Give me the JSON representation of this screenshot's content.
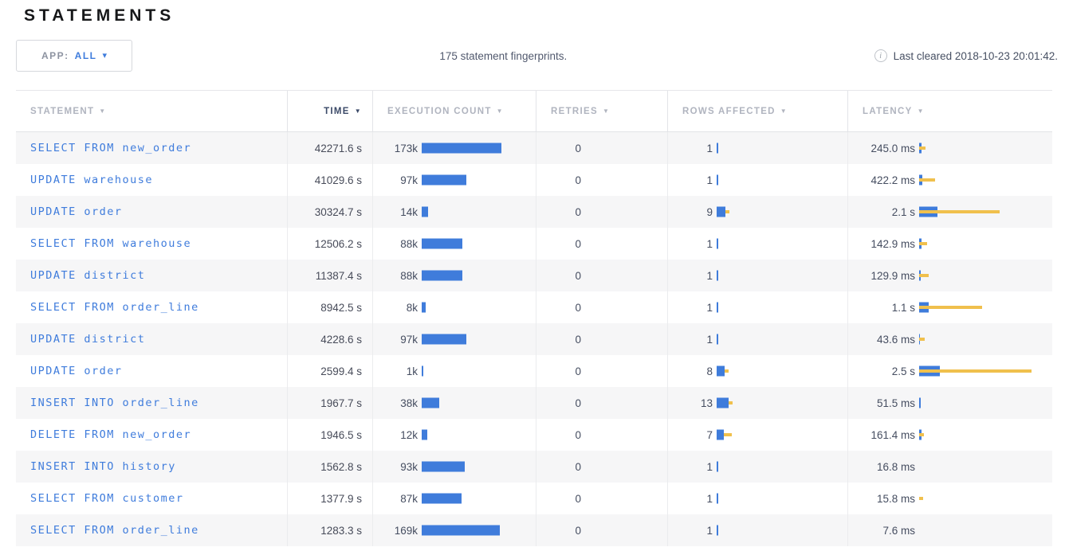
{
  "page": {
    "title": "STATEMENTS"
  },
  "toolbar": {
    "app_label": "APP:",
    "app_value": "ALL",
    "caret": "▾",
    "summary": "175 statement fingerprints.",
    "info_icon": "i",
    "last_cleared": "Last cleared 2018-10-23 20:01:42."
  },
  "colors": {
    "bar_blue": "#3F7CDB",
    "bar_yellow": "#F0C04D",
    "link_blue": "#3F7CDC",
    "sorted_header": "#3B4A68"
  },
  "table": {
    "sort_icon": "▼",
    "columns": [
      {
        "label": "STATEMENT",
        "sorted": false
      },
      {
        "label": "TIME",
        "sorted": true
      },
      {
        "label": "EXECUTION COUNT",
        "sorted": false
      },
      {
        "label": "RETRIES",
        "sorted": false
      },
      {
        "label": "ROWS AFFECTED",
        "sorted": false
      },
      {
        "label": "LATENCY",
        "sorted": false
      }
    ],
    "rows": [
      {
        "statement": "SELECT FROM new_order",
        "time": "42271.6 s",
        "exec_count": "173k",
        "exec_bar": 100,
        "retries": "0",
        "rows_affected": "1",
        "rows_bar": 2,
        "rows_dev": 0,
        "latency": "245.0 ms",
        "lat_bar": 3,
        "lat_dev": 8
      },
      {
        "statement": "UPDATE warehouse",
        "time": "41029.6 s",
        "exec_count": "97k",
        "exec_bar": 56,
        "retries": "0",
        "rows_affected": "1",
        "rows_bar": 2,
        "rows_dev": 0,
        "latency": "422.2 ms",
        "lat_bar": 4,
        "lat_dev": 20
      },
      {
        "statement": "UPDATE order",
        "time": "30324.7 s",
        "exec_count": "14k",
        "exec_bar": 8,
        "retries": "0",
        "rows_affected": "9",
        "rows_bar": 11,
        "rows_dev": 16,
        "latency": "2.1 s",
        "lat_bar": 23,
        "lat_dev": 101
      },
      {
        "statement": "SELECT FROM warehouse",
        "time": "12506.2 s",
        "exec_count": "88k",
        "exec_bar": 51,
        "retries": "0",
        "rows_affected": "1",
        "rows_bar": 2,
        "rows_dev": 0,
        "latency": "142.9 ms",
        "lat_bar": 3,
        "lat_dev": 10
      },
      {
        "statement": "UPDATE district",
        "time": "11387.4 s",
        "exec_count": "88k",
        "exec_bar": 51,
        "retries": "0",
        "rows_affected": "1",
        "rows_bar": 2,
        "rows_dev": 0,
        "latency": "129.9 ms",
        "lat_bar": 2,
        "lat_dev": 12
      },
      {
        "statement": "SELECT FROM order_line",
        "time": "8942.5 s",
        "exec_count": "8k",
        "exec_bar": 5,
        "retries": "0",
        "rows_affected": "1",
        "rows_bar": 2,
        "rows_dev": 0,
        "latency": "1.1 s",
        "lat_bar": 12,
        "lat_dev": 79
      },
      {
        "statement": "UPDATE district",
        "time": "4228.6 s",
        "exec_count": "97k",
        "exec_bar": 56,
        "retries": "0",
        "rows_affected": "1",
        "rows_bar": 2,
        "rows_dev": 0,
        "latency": "43.6 ms",
        "lat_bar": 1,
        "lat_dev": 7
      },
      {
        "statement": "UPDATE order",
        "time": "2599.4 s",
        "exec_count": "1k",
        "exec_bar": 2,
        "retries": "0",
        "rows_affected": "8",
        "rows_bar": 10,
        "rows_dev": 15,
        "latency": "2.5 s",
        "lat_bar": 26,
        "lat_dev": 141
      },
      {
        "statement": "INSERT INTO order_line",
        "time": "1967.7 s",
        "exec_count": "38k",
        "exec_bar": 22,
        "retries": "0",
        "rows_affected": "13",
        "rows_bar": 15,
        "rows_dev": 20,
        "latency": "51.5 ms",
        "lat_bar": 2,
        "lat_dev": 0
      },
      {
        "statement": "DELETE FROM new_order",
        "time": "1946.5 s",
        "exec_count": "12k",
        "exec_bar": 7,
        "retries": "0",
        "rows_affected": "7",
        "rows_bar": 9,
        "rows_dev": 19,
        "latency": "161.4 ms",
        "lat_bar": 3,
        "lat_dev": 6
      },
      {
        "statement": "INSERT INTO history",
        "time": "1562.8 s",
        "exec_count": "93k",
        "exec_bar": 54,
        "retries": "0",
        "rows_affected": "1",
        "rows_bar": 2,
        "rows_dev": 0,
        "latency": "16.8 ms",
        "lat_bar": 0,
        "lat_dev": 0
      },
      {
        "statement": "SELECT FROM customer",
        "time": "1377.9 s",
        "exec_count": "87k",
        "exec_bar": 50,
        "retries": "0",
        "rows_affected": "1",
        "rows_bar": 2,
        "rows_dev": 0,
        "latency": "15.8 ms",
        "lat_bar": 0,
        "lat_dev": 5
      },
      {
        "statement": "SELECT FROM order_line",
        "time": "1283.3 s",
        "exec_count": "169k",
        "exec_bar": 98,
        "retries": "0",
        "rows_affected": "1",
        "rows_bar": 2,
        "rows_dev": 0,
        "latency": "7.6 ms",
        "lat_bar": 0,
        "lat_dev": 0
      }
    ]
  }
}
